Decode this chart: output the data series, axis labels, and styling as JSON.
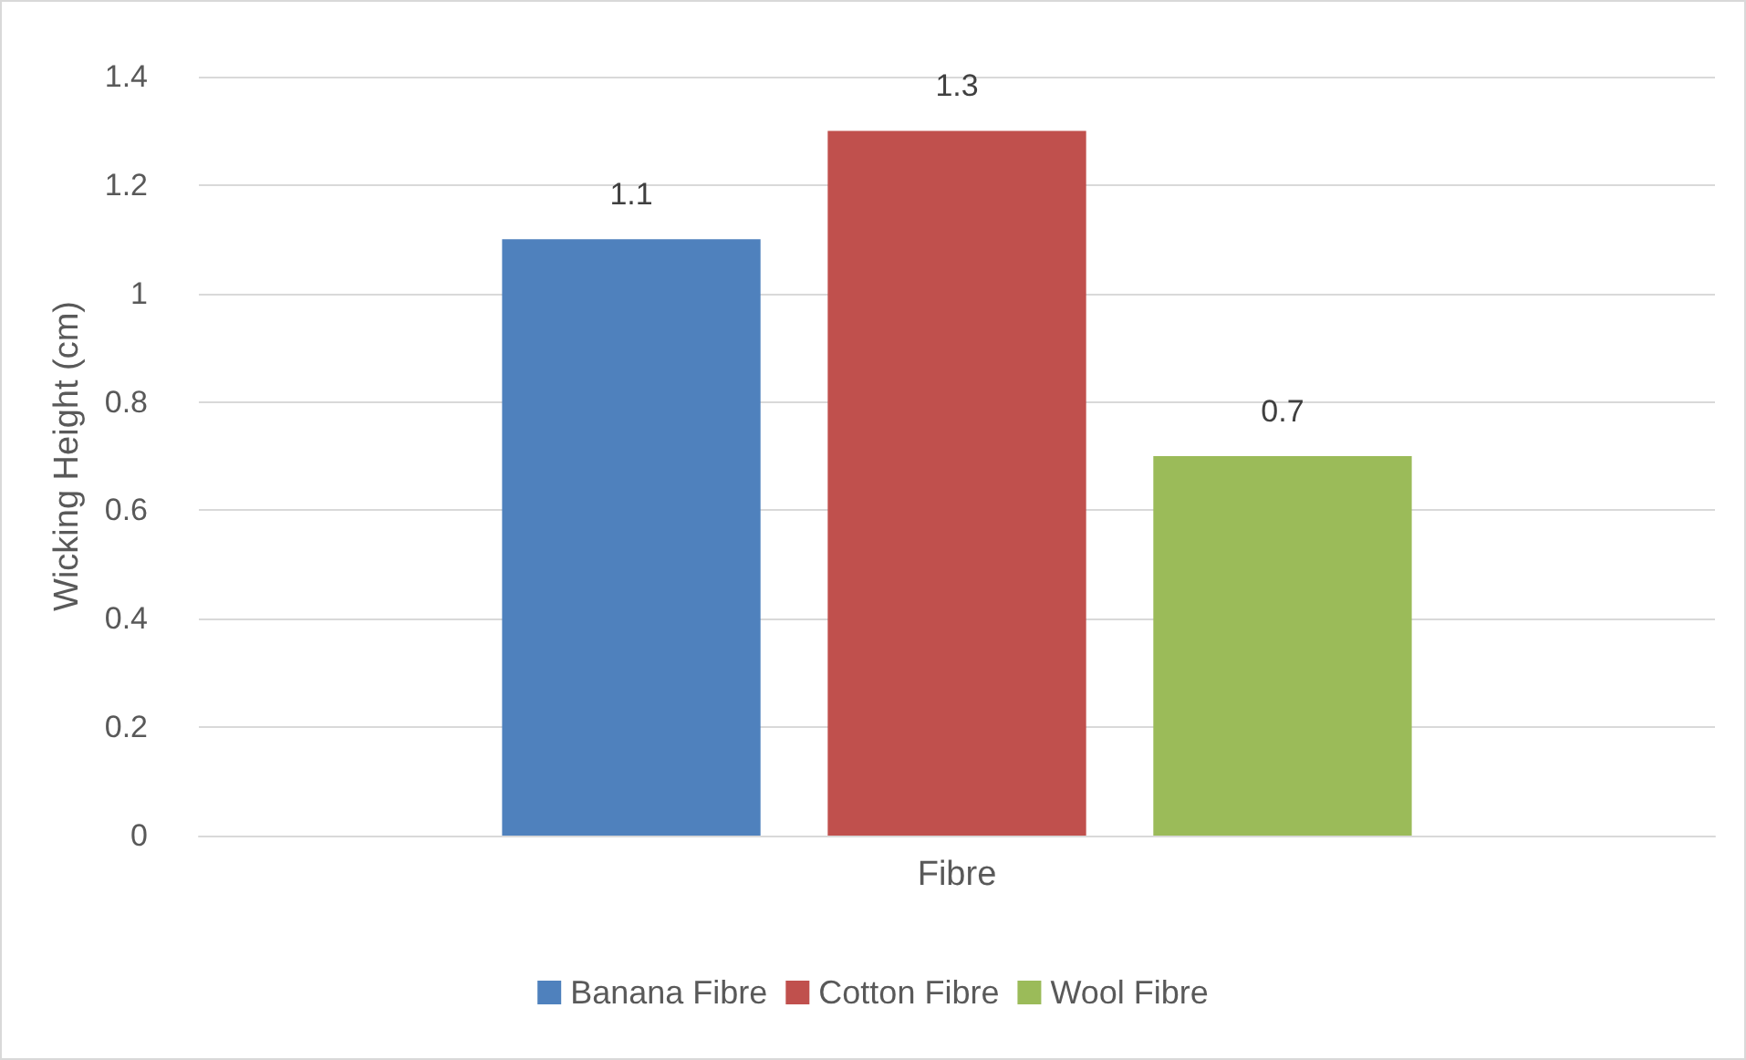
{
  "chart_data": {
    "type": "bar",
    "ylabel": "Wicking Height (cm)",
    "categories": [
      "Fibre"
    ],
    "series": [
      {
        "name": "Banana Fibre",
        "color": "#4f81bd",
        "values": [
          1.1
        ]
      },
      {
        "name": "Cotton Fibre",
        "color": "#c0504d",
        "values": [
          1.3
        ]
      },
      {
        "name": "Wool Fibre",
        "color": "#9bbb59",
        "values": [
          0.7
        ]
      }
    ],
    "ylim": [
      0,
      1.4
    ],
    "yticks": [
      0,
      0.2,
      0.4,
      0.6,
      0.8,
      1,
      1.2,
      1.4
    ],
    "grid": "y",
    "legend": "bottom",
    "data_labels": true
  }
}
